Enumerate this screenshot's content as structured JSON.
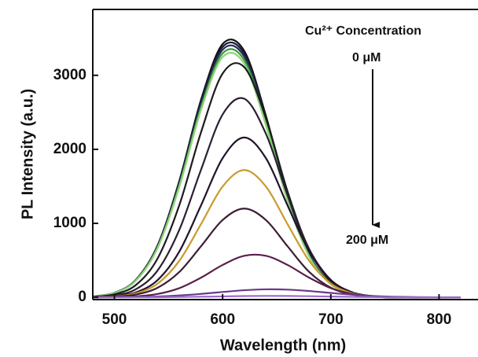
{
  "chart_data": {
    "type": "line",
    "x_label": "Wavelength (nm)",
    "y_label": "PL Intensity (a.u.)",
    "annotations": [
      "Cu²⁺ Concentration",
      "0 μM",
      "200 μM"
    ],
    "xlim": [
      480,
      836
    ],
    "ylim": [
      -30,
      3890
    ],
    "xticks": [
      500,
      600,
      700,
      800
    ],
    "yticks": [
      0,
      1000,
      2000,
      3000
    ],
    "x": [
      480,
      500,
      520,
      540,
      560,
      580,
      600,
      620,
      640,
      660,
      680,
      700,
      720,
      740,
      760,
      780,
      800,
      820
    ],
    "series": [
      {
        "color": "#111111",
        "values": [
          12,
          62,
          240,
          706,
          1575,
          2667,
          3423,
          3329,
          2454,
          1372,
          581,
          187,
          46,
          8,
          0,
          0,
          0,
          0
        ]
      },
      {
        "color": "#1a1a3a",
        "values": [
          12,
          61,
          237,
          698,
          1557,
          2637,
          3384,
          3291,
          2426,
          1356,
          574,
          184,
          45,
          8,
          0,
          0,
          0,
          0
        ]
      },
      {
        "color": "#2a2a5a",
        "values": [
          12,
          60,
          234,
          690,
          1539,
          2606,
          3345,
          3252,
          2397,
          1341,
          568,
          182,
          44,
          8,
          0,
          0,
          0,
          0
        ]
      },
      {
        "color": "#3c9a3c",
        "values": [
          11,
          59,
          231,
          680,
          1517,
          2568,
          3296,
          3205,
          2362,
          1321,
          559,
          180,
          44,
          8,
          0,
          0,
          0,
          0
        ]
      },
      {
        "color": "#8fd37a",
        "values": [
          11,
          58,
          227,
          670,
          1494,
          2530,
          3247,
          3157,
          2327,
          1301,
          551,
          177,
          43,
          8,
          0,
          0,
          0,
          0
        ]
      },
      {
        "color": "#1c1c1c",
        "values": [
          8,
          41,
          169,
          528,
          1247,
          2229,
          3024,
          3110,
          2423,
          1431,
          641,
          218,
          56,
          11,
          0,
          0,
          0,
          0
        ]
      },
      {
        "color": "#2b1f33",
        "values": [
          5,
          26,
          111,
          365,
          913,
          1723,
          2471,
          2684,
          2211,
          1382,
          653,
          235,
          64,
          13,
          2,
          0,
          0,
          0
        ]
      },
      {
        "color": "#22142a",
        "values": [
          2,
          15,
          68,
          235,
          620,
          1242,
          1881,
          2160,
          1881,
          1242,
          620,
          235,
          68,
          15,
          2,
          0,
          0,
          0
        ]
      },
      {
        "color": "#c99a2e",
        "values": [
          2,
          12,
          54,
          187,
          494,
          989,
          1498,
          1720,
          1498,
          989,
          494,
          187,
          54,
          12,
          2,
          0,
          0,
          0
        ]
      },
      {
        "color": "#3b1e35",
        "values": [
          1,
          8,
          38,
          131,
          344,
          690,
          1045,
          1200,
          1045,
          690,
          344,
          131,
          38,
          8,
          1,
          0,
          0,
          0
        ]
      },
      {
        "color": "#5a1f4a",
        "values": [
          1,
          3,
          13,
          46,
          125,
          266,
          438,
          562,
          562,
          438,
          266,
          125,
          46,
          13,
          3,
          1,
          0,
          0
        ]
      },
      {
        "color": "#6a3a8a",
        "values": [
          0,
          2,
          5,
          12,
          26,
          47,
          73,
          97,
          109,
          105,
          86,
          60,
          36,
          18,
          8,
          3,
          1,
          0
        ]
      },
      {
        "color": "#9a6ad0",
        "values": [
          0,
          0,
          1,
          2,
          5,
          9,
          13,
          18,
          20,
          19,
          16,
          11,
          7,
          4,
          1,
          1,
          0,
          0
        ]
      }
    ]
  }
}
